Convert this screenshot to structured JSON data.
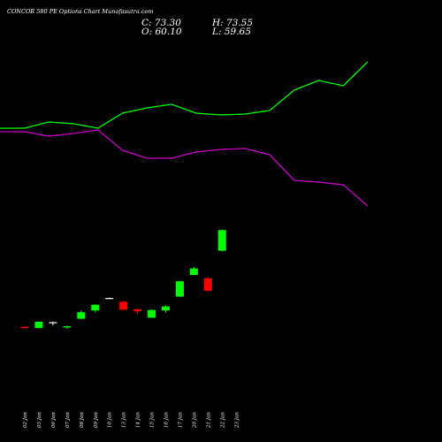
{
  "header": {
    "title": "CONCOR 580 PE Options Chart Munafasutra.com",
    "close_label": "C:",
    "close_value": "73.30",
    "high_label": "H:",
    "high_value": "73.55",
    "open_label": "O:",
    "open_value": "60.10",
    "low_label": "L:",
    "low_value": "59.65"
  },
  "colors": {
    "up": "#00ff00",
    "down": "#ff0000",
    "neutral": "#ffffff",
    "line_upper": "#00ff00",
    "line_lower": "#cc00cc",
    "background": "#000000"
  },
  "chart_data": {
    "type": "candlestick",
    "title": "CONCOR 580 PE Options Chart Munafasutra.com",
    "categories": [
      "02 Jan",
      "03 Jan",
      "06 Jan",
      "07 Jan",
      "08 Jan",
      "09 Jan",
      "10 Jan",
      "13 Jan",
      "14 Jan",
      "15 Jan",
      "16 Jan",
      "17 Jan",
      "20 Jan",
      "21 Jan",
      "22 Jan",
      "23 Jan"
    ],
    "candles": [
      {
        "x": "02 Jan",
        "open": 11.5,
        "high": 11.7,
        "low": 10.4,
        "close": 10.6
      },
      {
        "x": "03 Jan",
        "open": 10.7,
        "high": 14.9,
        "low": 10.6,
        "close": 14.7
      },
      {
        "x": "06 Jan",
        "open": 14.3,
        "high": 14.8,
        "low": 12.3,
        "close": 14.4
      },
      {
        "x": "07 Jan",
        "open": 11.1,
        "high": 12.2,
        "low": 10.2,
        "close": 11.8
      },
      {
        "x": "08 Jan",
        "open": 16.6,
        "high": 22.0,
        "low": 16.5,
        "close": 20.8
      },
      {
        "x": "09 Jan",
        "open": 21.9,
        "high": 25.8,
        "low": 20.7,
        "close": 25.6
      },
      {
        "x": "10 Jan",
        "open": 29.9,
        "high": 30.1,
        "low": 29.5,
        "close": 29.8
      },
      {
        "x": "13 Jan",
        "open": 27.5,
        "high": 28.0,
        "low": 22.0,
        "close": 22.4
      },
      {
        "x": "14 Jan",
        "open": 22.7,
        "high": 23.0,
        "low": 19.5,
        "close": 21.4
      },
      {
        "x": "15 Jan",
        "open": 17.3,
        "high": 22.7,
        "low": 17.2,
        "close": 22.2
      },
      {
        "x": "16 Jan",
        "open": 21.9,
        "high": 25.2,
        "low": 20.6,
        "close": 24.5
      },
      {
        "x": "17 Jan",
        "open": 30.8,
        "high": 40.9,
        "low": 30.6,
        "close": 40.6
      },
      {
        "x": "20 Jan",
        "open": 44.6,
        "high": 49.8,
        "low": 44.5,
        "close": 48.8
      },
      {
        "x": "21 Jan",
        "open": 42.4,
        "high": 43.3,
        "low": 34.1,
        "close": 34.5
      },
      {
        "x": "22 Jan",
        "open": 60.1,
        "high": 73.55,
        "low": 59.65,
        "close": 73.3
      }
    ],
    "upper_line": [
      145,
      145,
      138,
      140,
      145,
      128,
      122,
      118,
      128,
      130,
      129,
      125,
      102,
      91,
      97,
      70
    ],
    "lower_line": [
      149,
      149,
      154,
      151,
      147,
      170,
      179,
      179,
      172,
      169,
      168,
      175,
      204,
      206,
      209,
      233
    ]
  }
}
